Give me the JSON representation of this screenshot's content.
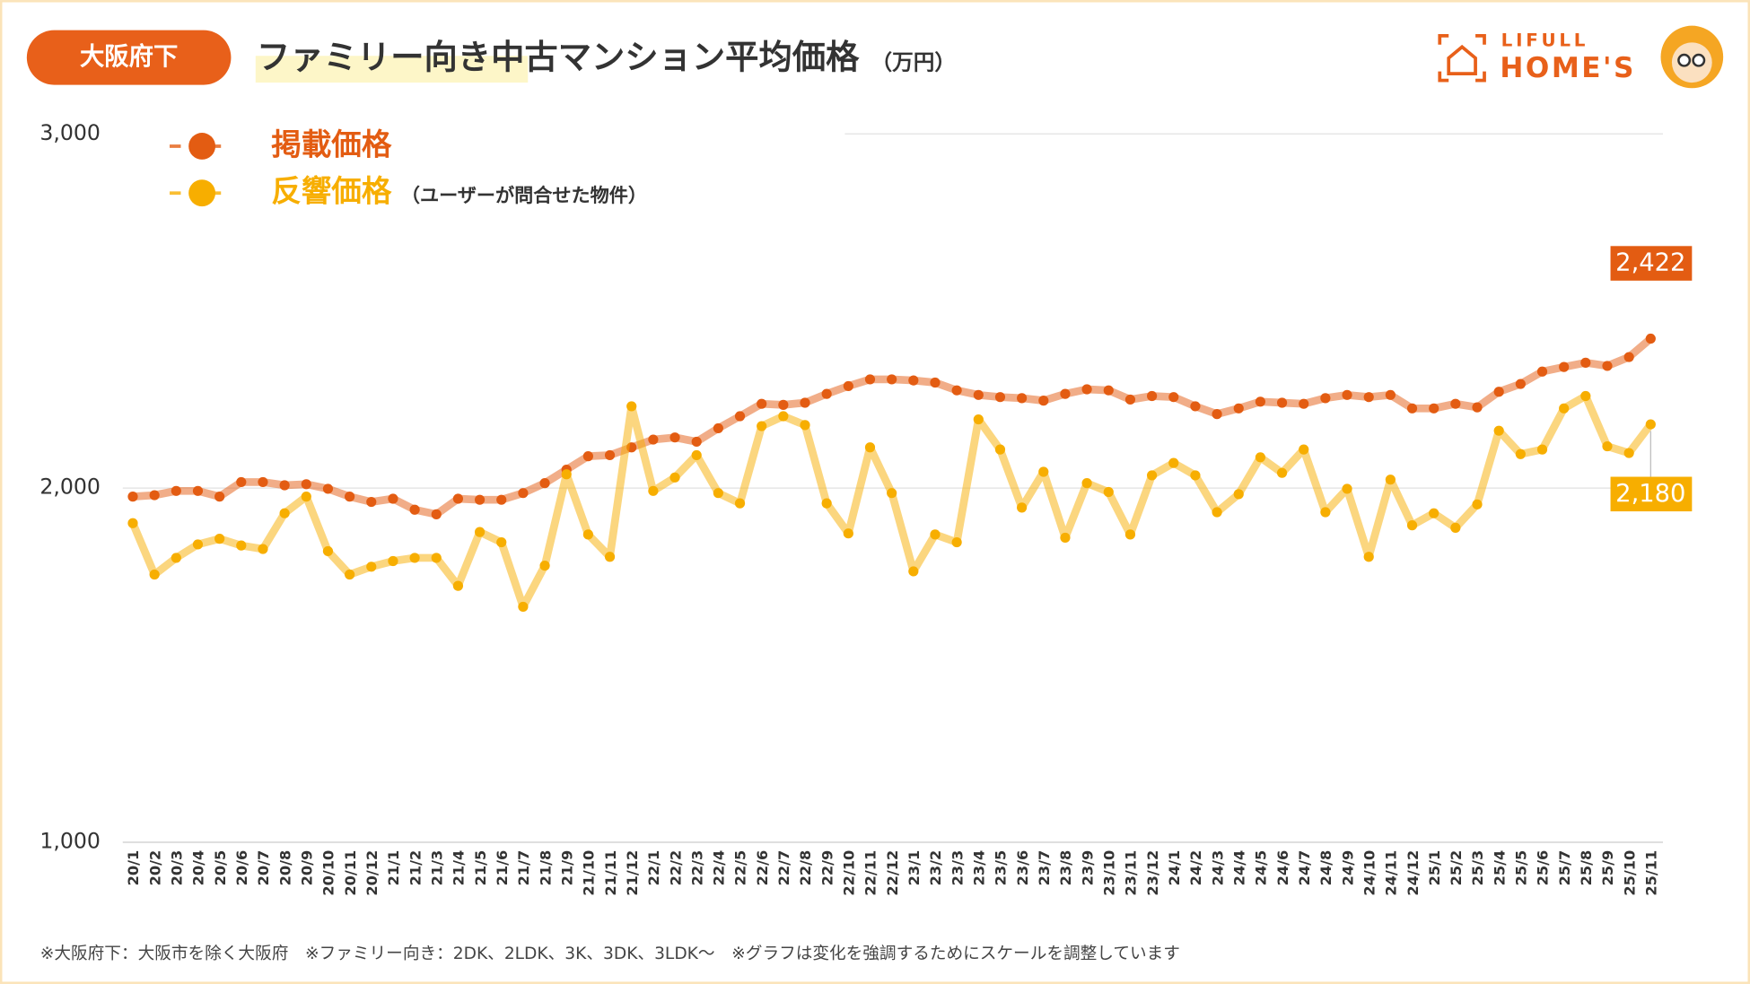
{
  "header": {
    "badge": "大阪府下",
    "logo_top": "LIFULL",
    "logo_bottom": "HOME'S"
  },
  "chart_data": {
    "type": "line",
    "title": "ファミリー向き中古マンション平均価格",
    "unit": "（万円）",
    "categories": [
      "20/1",
      "20/2",
      "20/3",
      "20/4",
      "20/5",
      "20/6",
      "20/7",
      "20/8",
      "20/9",
      "20/10",
      "20/11",
      "20/12",
      "21/1",
      "21/2",
      "21/3",
      "21/4",
      "21/5",
      "21/6",
      "21/7",
      "21/8",
      "21/9",
      "21/10",
      "21/11",
      "21/12",
      "22/1",
      "22/2",
      "22/3",
      "22/4",
      "22/5",
      "22/6",
      "22/7",
      "22/8",
      "22/9",
      "22/10",
      "22/11",
      "22/12",
      "23/1",
      "23/2",
      "23/3",
      "23/4",
      "23/5",
      "23/6",
      "23/7",
      "23/8",
      "23/9",
      "23/10",
      "23/11",
      "23/12",
      "24/1",
      "24/2",
      "24/3",
      "24/4",
      "24/5",
      "24/6",
      "24/7",
      "24/8",
      "24/9",
      "24/10",
      "24/11",
      "24/12",
      "25/1",
      "25/2",
      "25/3",
      "25/4",
      "25/5",
      "25/6",
      "25/7",
      "25/8",
      "25/9",
      "25/10",
      "25/11"
    ],
    "series": [
      {
        "name": "掲載価格",
        "color": "#e35c12",
        "values": [
          1976,
          1980,
          1992,
          1992,
          1976,
          2017,
          2017,
          2008,
          2011,
          1998,
          1976,
          1961,
          1970,
          1939,
          1926,
          1970,
          1967,
          1967,
          1986,
          2014,
          2052,
          2090,
          2093,
          2115,
          2137,
          2143,
          2131,
          2169,
          2203,
          2238,
          2235,
          2241,
          2266,
          2288,
          2307,
          2307,
          2304,
          2298,
          2276,
          2263,
          2257,
          2254,
          2247,
          2266,
          2279,
          2276,
          2250,
          2260,
          2257,
          2231,
          2209,
          2225,
          2244,
          2241,
          2238,
          2254,
          2263,
          2257,
          2263,
          2225,
          2225,
          2238,
          2228,
          2272,
          2294,
          2329,
          2342,
          2354,
          2345,
          2370,
          2422
        ],
        "value_labels": [
          null,
          null,
          null,
          null,
          null,
          null,
          null,
          null,
          null,
          null,
          null,
          null,
          null,
          null,
          null,
          null,
          null,
          null,
          null,
          null,
          null,
          null,
          null,
          null,
          null,
          null,
          null,
          null,
          null,
          null,
          null,
          null,
          null,
          null,
          null,
          null,
          null,
          null,
          null,
          null,
          null,
          null,
          null,
          null,
          null,
          null,
          null,
          null,
          null,
          null,
          null,
          null,
          null,
          null,
          null,
          null,
          null,
          null,
          null,
          null,
          null,
          null,
          null,
          null,
          null,
          null,
          null,
          null,
          null,
          null,
          "2,422"
        ]
      },
      {
        "name": "反響価格",
        "note": "（ユーザーが問合せた物件）",
        "color": "#f7ae00",
        "values": [
          1901,
          1756,
          1803,
          1841,
          1857,
          1838,
          1828,
          1929,
          1976,
          1822,
          1756,
          1778,
          1794,
          1803,
          1803,
          1724,
          1876,
          1847,
          1665,
          1781,
          2039,
          1869,
          1806,
          2231,
          1992,
          2030,
          2093,
          1986,
          1957,
          2175,
          2203,
          2178,
          1957,
          1872,
          2115,
          1986,
          1765,
          1869,
          1847,
          2194,
          2109,
          1945,
          2046,
          1860,
          2014,
          1989,
          1869,
          2036,
          2071,
          2036,
          1932,
          1983,
          2087,
          2043,
          2109,
          1932,
          1998,
          1806,
          2024,
          1895,
          1929,
          1888,
          1954,
          2162,
          2096,
          2109,
          2225,
          2260,
          2118,
          2099,
          2180
        ],
        "value_labels": [
          null,
          null,
          null,
          null,
          null,
          null,
          null,
          null,
          null,
          null,
          null,
          null,
          null,
          null,
          null,
          null,
          null,
          null,
          null,
          null,
          null,
          null,
          null,
          null,
          null,
          null,
          null,
          null,
          null,
          null,
          null,
          null,
          null,
          null,
          null,
          null,
          null,
          null,
          null,
          null,
          null,
          null,
          null,
          null,
          null,
          null,
          null,
          null,
          null,
          null,
          null,
          null,
          null,
          null,
          null,
          null,
          null,
          null,
          null,
          null,
          null,
          null,
          null,
          null,
          null,
          null,
          null,
          null,
          null,
          null,
          "2,180"
        ]
      }
    ],
    "ylim": [
      1000,
      3000
    ],
    "yticks": [
      {
        "value": 1000,
        "label": "1,000"
      },
      {
        "value": 2000,
        "label": "2,000"
      },
      {
        "value": 3000,
        "label": "3,000"
      }
    ],
    "grid": true,
    "footnote": "※大阪府下：大阪市を除く大阪府　※ファミリー向き：2DK、2LDK、3K、3DK、3LDK～　※グラフは変化を強調するためにスケールを調整しています"
  }
}
